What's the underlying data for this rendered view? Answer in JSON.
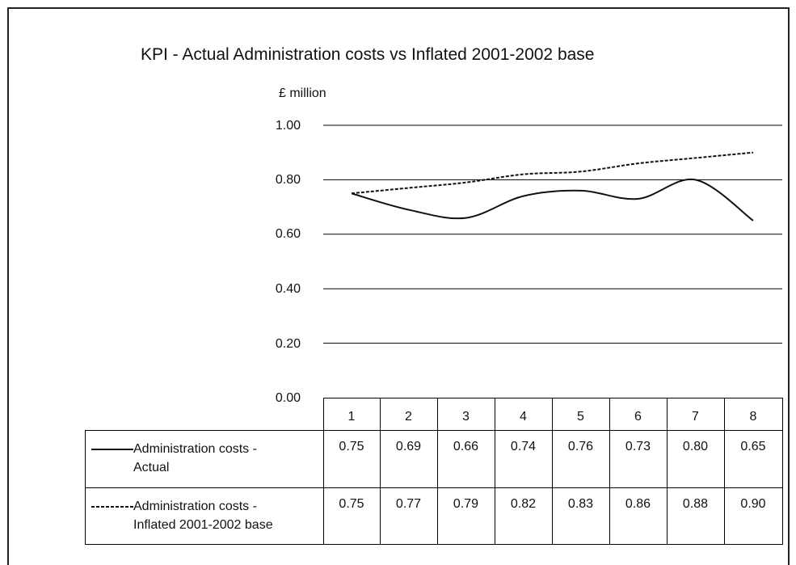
{
  "chart_data": {
    "type": "line",
    "title": "KPI - Actual Administration costs vs Inflated 2001-2002 base",
    "ylabel": "£ million",
    "xlabel": "",
    "ylim": [
      0,
      1.0
    ],
    "yticks": [
      "1.00",
      "0.80",
      "0.60",
      "0.40",
      "0.20",
      "0.00"
    ],
    "categories": [
      "1",
      "2",
      "3",
      "4",
      "5",
      "6",
      "7",
      "8"
    ],
    "grid": true,
    "legend": "data-table-below",
    "series": [
      {
        "name_line1": "Administration costs -",
        "name_line2": "Actual",
        "line_style": "solid",
        "values": [
          0.75,
          0.69,
          0.66,
          0.74,
          0.76,
          0.73,
          0.8,
          0.65
        ],
        "labels": [
          "0.75",
          "0.69",
          "0.66",
          "0.74",
          "0.76",
          "0.73",
          "0.80",
          "0.65"
        ]
      },
      {
        "name_line1": "Administration costs -",
        "name_line2": "Inflated 2001-2002 base",
        "line_style": "dashed",
        "values": [
          0.75,
          0.77,
          0.79,
          0.82,
          0.83,
          0.86,
          0.88,
          0.9
        ],
        "labels": [
          "0.75",
          "0.77",
          "0.79",
          "0.82",
          "0.83",
          "0.86",
          "0.88",
          "0.90"
        ]
      }
    ],
    "colors": {
      "line": "#111111",
      "grid": "#000000"
    }
  }
}
